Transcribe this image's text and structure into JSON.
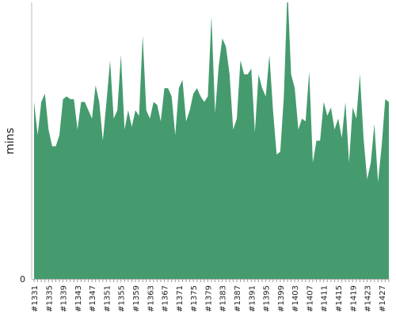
{
  "chart_data": {
    "type": "area",
    "y_label": "mins",
    "color": "#459b6e",
    "categories": [
      "#1331",
      null,
      null,
      null,
      "#1335",
      null,
      null,
      null,
      "#1339",
      null,
      null,
      null,
      "#1343",
      null,
      null,
      null,
      "#1347",
      null,
      null,
      null,
      "#1351",
      null,
      null,
      null,
      "#1355",
      null,
      null,
      null,
      "#1359",
      null,
      null,
      null,
      "#1363",
      null,
      null,
      null,
      "#1367",
      null,
      null,
      null,
      "#1371",
      null,
      null,
      null,
      "#1375",
      null,
      null,
      null,
      "#1379",
      null,
      null,
      null,
      "#1383",
      null,
      null,
      null,
      "#1387",
      null,
      null,
      null,
      "#1391",
      null,
      null,
      null,
      "#1395",
      null,
      null,
      null,
      "#1399",
      null,
      null,
      null,
      "#1403",
      null,
      null,
      null,
      "#1407",
      null,
      null,
      null,
      "#1411",
      null,
      null,
      null,
      "#1415",
      null,
      null,
      null,
      "#1419",
      null,
      null,
      null,
      "#1423",
      null,
      null,
      null,
      "#1427",
      null,
      null
    ],
    "values": [
      64,
      52,
      64,
      67,
      54,
      48,
      48,
      52,
      65,
      66,
      65,
      65,
      54,
      64,
      64,
      61,
      58,
      70,
      64,
      50,
      64,
      79,
      58,
      61,
      81,
      54,
      61,
      55,
      61,
      59,
      88,
      61,
      58,
      64,
      63,
      57,
      69,
      69,
      66,
      52,
      69,
      72,
      57,
      61,
      67,
      69,
      66,
      64,
      66,
      95,
      60,
      77,
      87,
      84,
      74,
      54,
      58,
      79,
      74,
      74,
      76,
      53,
      74,
      69,
      66,
      81,
      61,
      45,
      46,
      66,
      105,
      74,
      69,
      54,
      58,
      57,
      75,
      42,
      50,
      50,
      64,
      59,
      62,
      54,
      58,
      51,
      64,
      42,
      62,
      58,
      74,
      51,
      36,
      42,
      56,
      35,
      48,
      65,
      64
    ],
    "ylim": [
      0,
      100
    ],
    "yticks": [
      0
    ]
  }
}
